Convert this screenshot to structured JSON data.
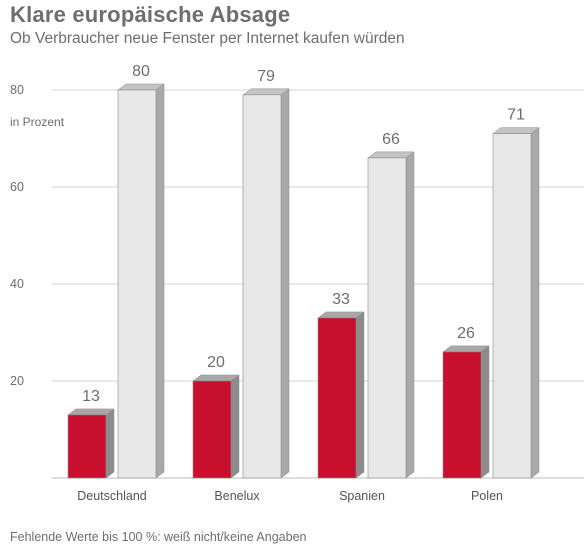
{
  "header": {
    "title": "Klare europäische Absage",
    "subtitle": "Ob Verbraucher neue Fenster per Internet kaufen würden"
  },
  "footnote": "Fehlende Werte bis 100 %: weiß nicht/keine Angaben",
  "colors": {
    "red": "#c8102e",
    "light": "#e8e8e8",
    "grid": "#d6d6d6",
    "axis": "#bdbdbd"
  },
  "chart_data": {
    "type": "bar",
    "title": "Klare europäische Absage",
    "subtitle": "Ob Verbraucher neue Fenster per Internet kaufen würden",
    "unit_label": "in Prozent",
    "categories": [
      "Deutschland",
      "Benelux",
      "Spanien",
      "Polen"
    ],
    "series": [
      {
        "values": [
          13,
          20,
          33,
          26
        ],
        "color": "#c8102e"
      },
      {
        "values": [
          80,
          79,
          66,
          71
        ],
        "color": "#e8e8e8"
      }
    ],
    "yticks": [
      20,
      40,
      60,
      80
    ],
    "ylim": [
      0,
      90
    ],
    "grid": true,
    "style": "3d"
  }
}
